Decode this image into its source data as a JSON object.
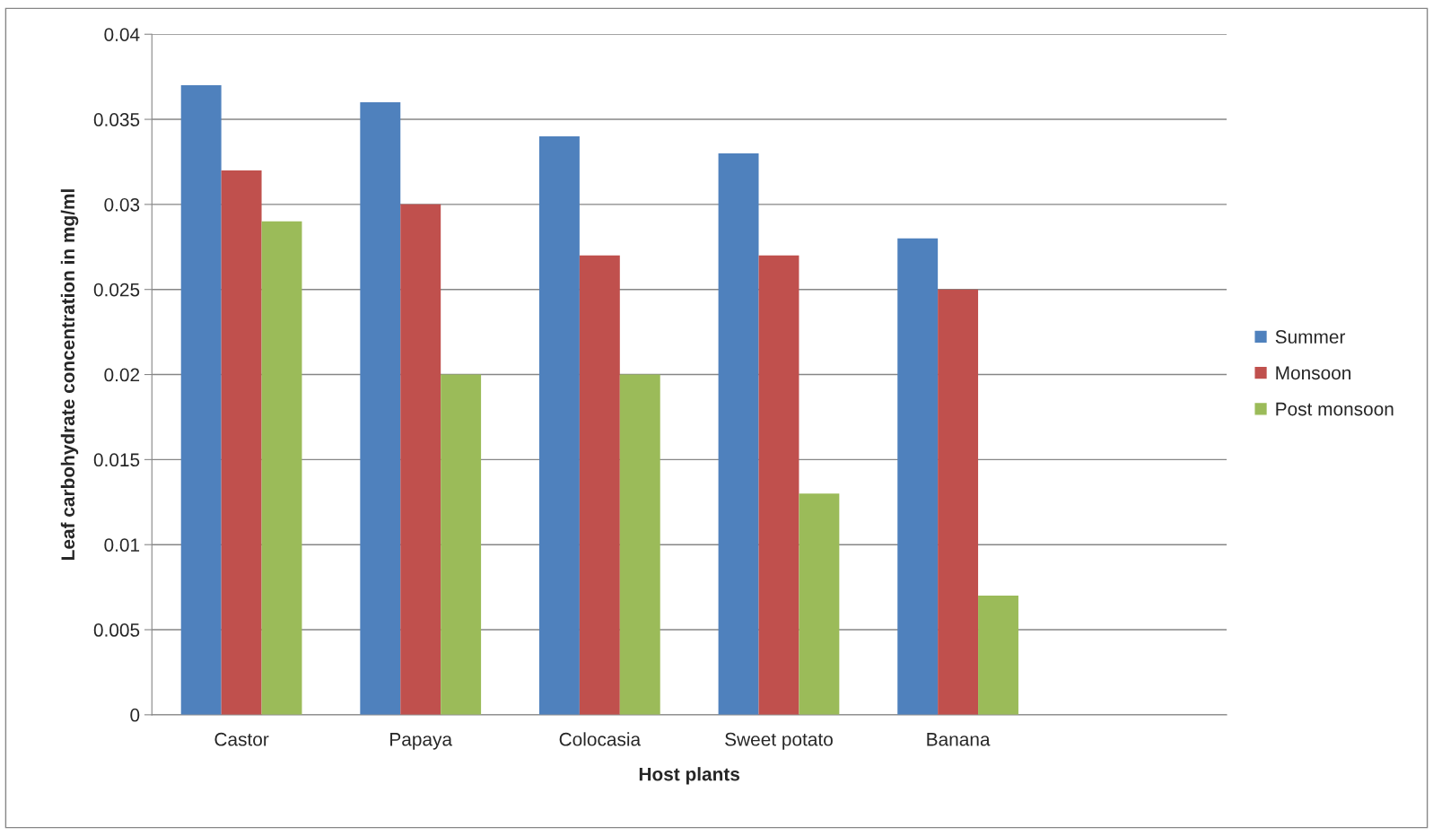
{
  "chart_data": {
    "type": "bar",
    "xlabel": "Host plants",
    "ylabel": "Leaf carbohydrate concentration in mg/ml",
    "categories": [
      "Castor",
      "Papaya",
      "Colocasia",
      "Sweet potato",
      "Banana",
      null
    ],
    "series": [
      {
        "name": "Summer",
        "color": "#4f81bd",
        "values": [
          0.037,
          0.036,
          0.034,
          0.033,
          0.028,
          null
        ]
      },
      {
        "name": "Monsoon",
        "color": "#c0504d",
        "values": [
          0.032,
          0.03,
          0.027,
          0.027,
          0.025,
          null
        ]
      },
      {
        "name": "Post monsoon",
        "color": "#9bbb59",
        "values": [
          0.029,
          0.02,
          0.02,
          0.013,
          0.007,
          null
        ]
      }
    ],
    "ylim": [
      0,
      0.04
    ],
    "yticks": [
      0,
      0.005,
      0.01,
      0.015,
      0.02,
      0.025,
      0.03,
      0.035,
      0.04
    ],
    "grid": "y",
    "legend": "right"
  }
}
